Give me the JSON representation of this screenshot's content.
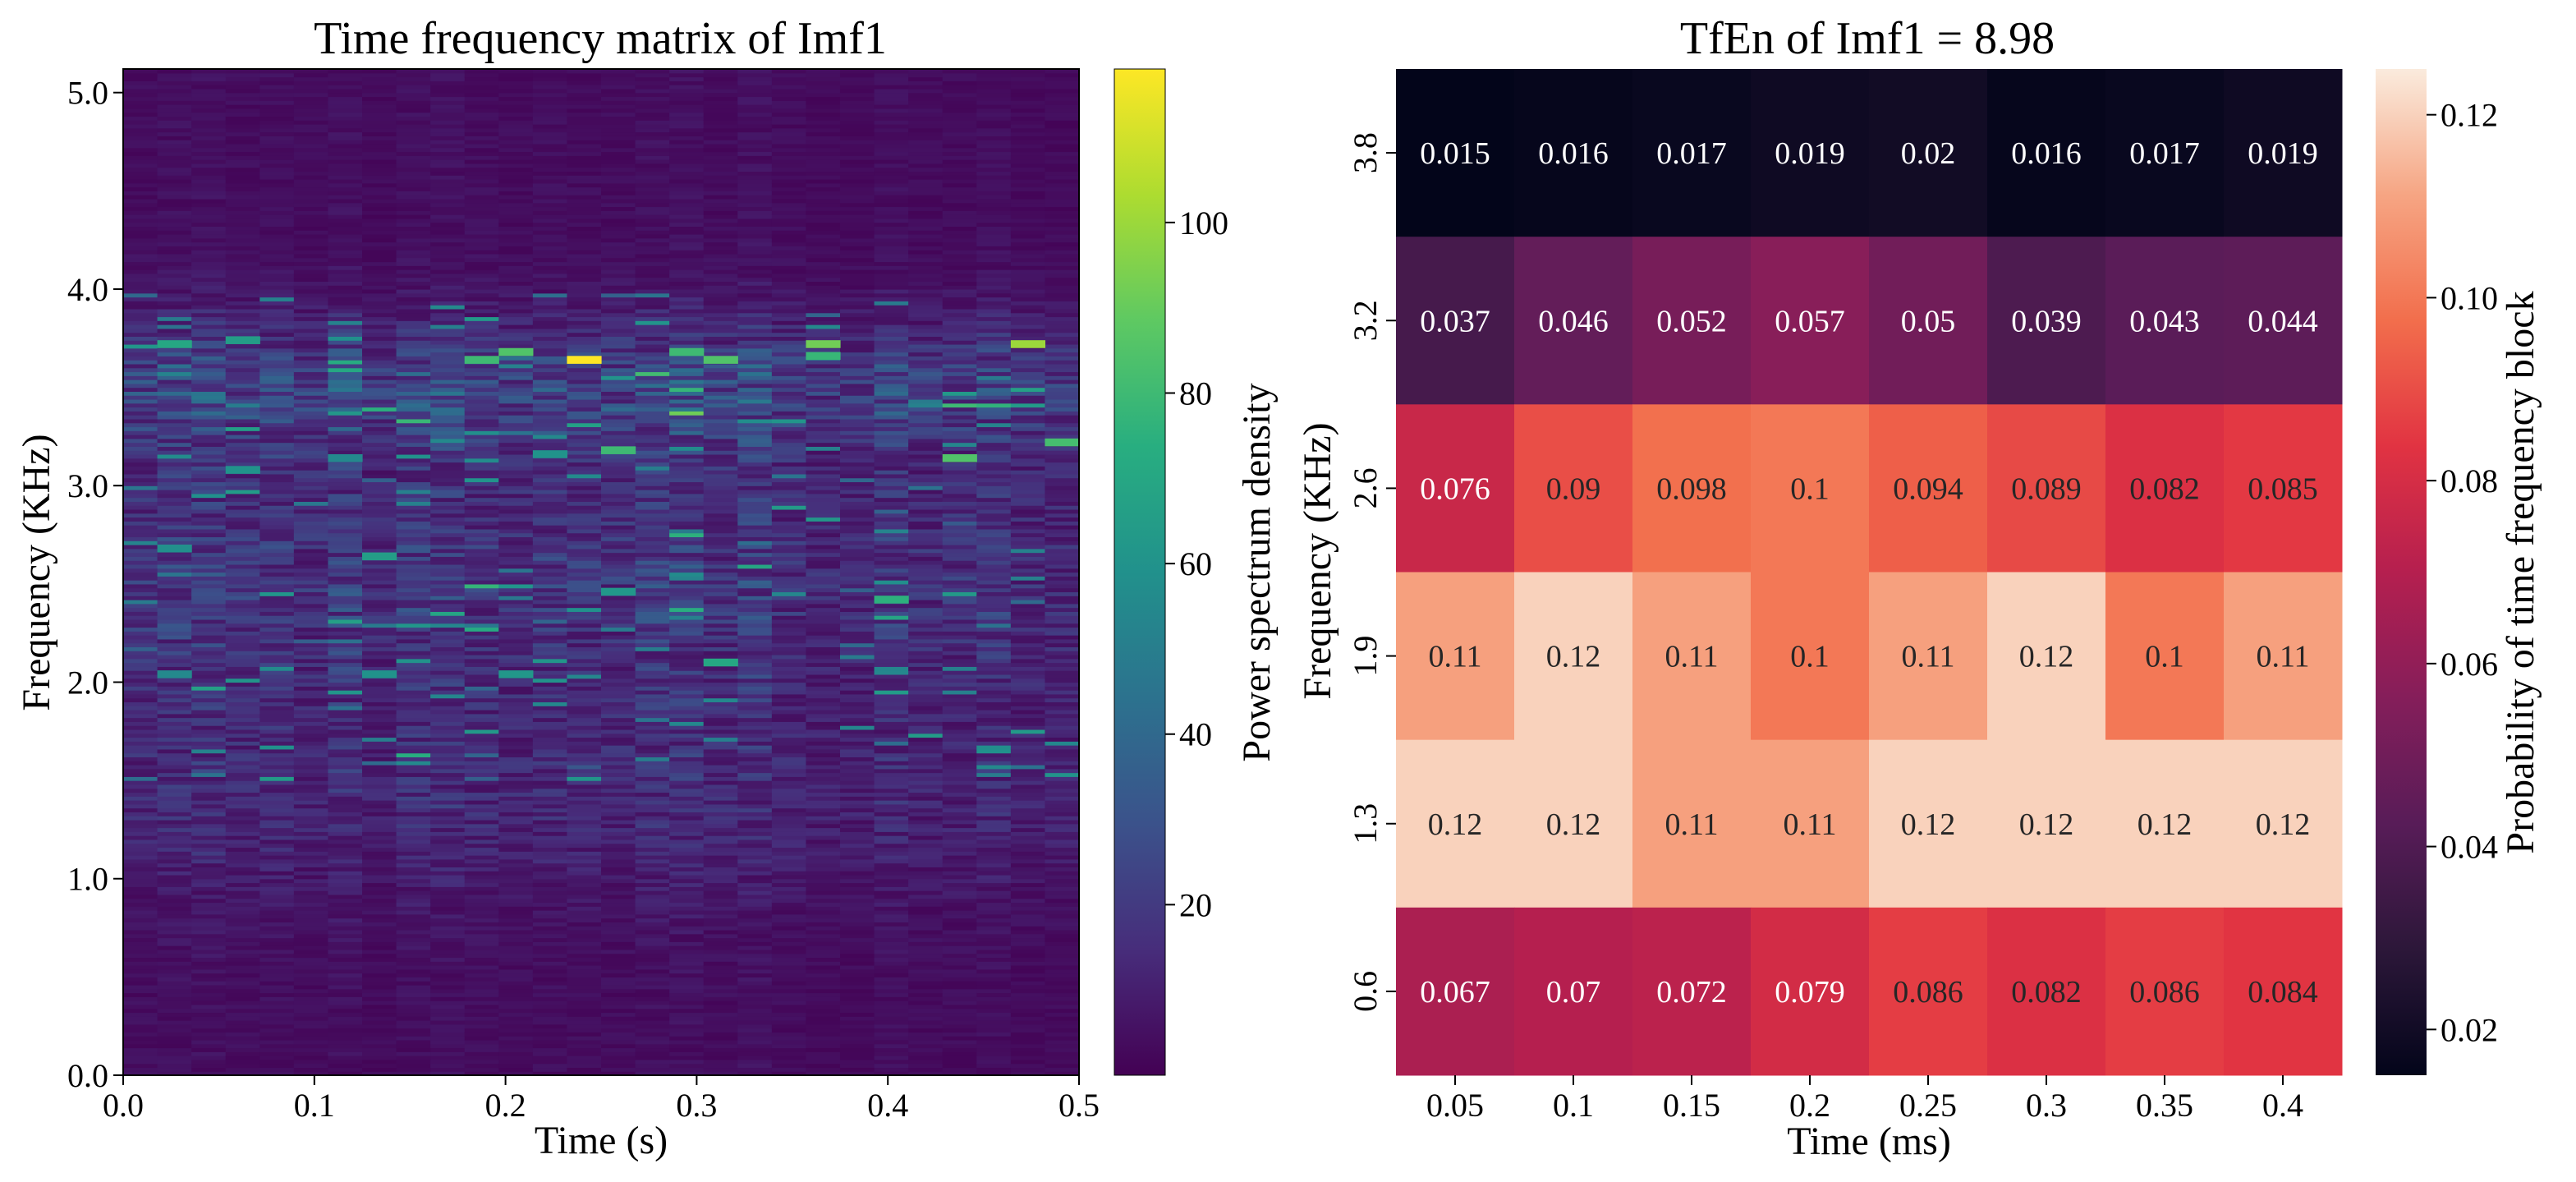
{
  "chart_data": [
    {
      "type": "heatmap",
      "title": "Time frequency matrix of Imf1",
      "xlabel": "Time (s)",
      "ylabel": "Frequency (KHz)",
      "xlim": [
        0.0,
        0.5
      ],
      "ylim": [
        0.0,
        5.12
      ],
      "x_ticks": [
        "0.0",
        "0.1",
        "0.2",
        "0.3",
        "0.4",
        "0.5"
      ],
      "y_ticks": [
        "0.0",
        "1.0",
        "2.0",
        "3.0",
        "4.0",
        "5.0"
      ],
      "colormap": "viridis",
      "colorbar": {
        "label": "Power spectrum density",
        "range": [
          0,
          118
        ],
        "ticks": [
          "20",
          "40",
          "60",
          "80",
          "100"
        ]
      },
      "time_bins": 28,
      "freq_bins": 256,
      "hot_spots": [
        {
          "t": 0.24,
          "f": 3.62,
          "value": 118
        },
        {
          "t": 0.465,
          "f": 3.71,
          "value": 100
        },
        {
          "t": 0.21,
          "f": 3.66,
          "value": 85
        },
        {
          "t": 0.29,
          "f": 3.66,
          "value": 80
        },
        {
          "t": 0.36,
          "f": 3.7,
          "value": 92
        },
        {
          "t": 0.37,
          "f": 3.64,
          "value": 78
        },
        {
          "t": 0.32,
          "f": 3.63,
          "value": 85
        },
        {
          "t": 0.19,
          "f": 3.63,
          "value": 80
        },
        {
          "t": 0.03,
          "f": 3.7,
          "value": 70
        },
        {
          "t": 0.06,
          "f": 3.73,
          "value": 65
        },
        {
          "t": 0.43,
          "f": 3.13,
          "value": 85
        },
        {
          "t": 0.49,
          "f": 3.2,
          "value": 82
        },
        {
          "t": 0.26,
          "f": 3.17,
          "value": 80
        },
        {
          "t": 0.22,
          "f": 3.15,
          "value": 60
        },
        {
          "t": 0.13,
          "f": 2.63,
          "value": 65
        },
        {
          "t": 0.03,
          "f": 2.66,
          "value": 58
        },
        {
          "t": 0.41,
          "f": 2.4,
          "value": 75
        },
        {
          "t": 0.25,
          "f": 2.44,
          "value": 62
        },
        {
          "t": 0.31,
          "f": 2.09,
          "value": 70
        },
        {
          "t": 0.13,
          "f": 2.03,
          "value": 60
        },
        {
          "t": 0.03,
          "f": 2.03,
          "value": 55
        },
        {
          "t": 0.2,
          "f": 2.03,
          "value": 62
        },
        {
          "t": 0.06,
          "f": 3.07,
          "value": 60
        },
        {
          "t": 0.11,
          "f": 3.13,
          "value": 55
        }
      ]
    },
    {
      "type": "heatmap",
      "title": "TfEn of Imf1 = 8.98",
      "xlabel": "Time (ms)",
      "ylabel": "Frequency (KHz)",
      "x_categories": [
        "0.05",
        "0.1",
        "0.15",
        "0.2",
        "0.25",
        "0.3",
        "0.35",
        "0.4"
      ],
      "y_categories": [
        "3.8",
        "3.2",
        "2.6",
        "1.9",
        "1.3",
        "0.6"
      ],
      "colormap": "rocket",
      "colorbar": {
        "label": "Probability of time frequency block",
        "range": [
          0.015,
          0.125
        ],
        "ticks": [
          "0.02",
          "0.04",
          "0.06",
          "0.08",
          "0.10",
          "0.12"
        ]
      },
      "values": [
        [
          0.015,
          0.016,
          0.017,
          0.019,
          0.02,
          0.016,
          0.017,
          0.019
        ],
        [
          0.037,
          0.046,
          0.052,
          0.057,
          0.05,
          0.039,
          0.043,
          0.044
        ],
        [
          0.076,
          0.09,
          0.098,
          0.1,
          0.094,
          0.089,
          0.082,
          0.085
        ],
        [
          0.11,
          0.12,
          0.11,
          0.1,
          0.11,
          0.12,
          0.1,
          0.11
        ],
        [
          0.12,
          0.12,
          0.11,
          0.11,
          0.12,
          0.12,
          0.12,
          0.12
        ],
        [
          0.067,
          0.07,
          0.072,
          0.079,
          0.086,
          0.082,
          0.086,
          0.084
        ]
      ],
      "annotations": [
        [
          "0.015",
          "0.016",
          "0.017",
          "0.019",
          "0.02",
          "0.016",
          "0.017",
          "0.019"
        ],
        [
          "0.037",
          "0.046",
          "0.052",
          "0.057",
          "0.05",
          "0.039",
          "0.043",
          "0.044"
        ],
        [
          "0.076",
          "0.09",
          "0.098",
          "0.1",
          "0.094",
          "0.089",
          "0.082",
          "0.085"
        ],
        [
          "0.11",
          "0.12",
          "0.11",
          "0.1",
          "0.11",
          "0.12",
          "0.1",
          "0.11"
        ],
        [
          "0.12",
          "0.12",
          "0.11",
          "0.11",
          "0.12",
          "0.12",
          "0.12",
          "0.12"
        ],
        [
          "0.067",
          "0.07",
          "0.072",
          "0.079",
          "0.086",
          "0.082",
          "0.086",
          "0.084"
        ]
      ]
    }
  ]
}
